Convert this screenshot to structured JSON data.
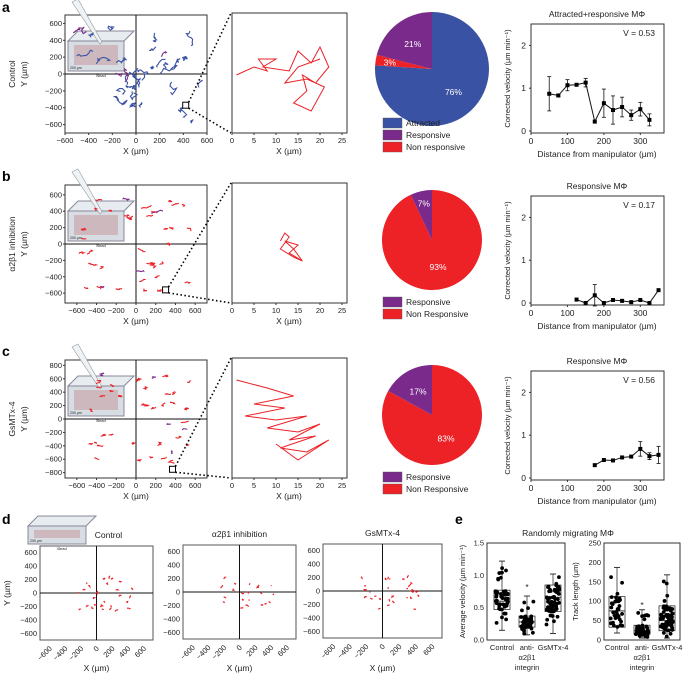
{
  "colors": {
    "attracted": "#3a52a3",
    "responsive": "#7a2a8a",
    "non_responsive": "#ec2227",
    "axis": "#333333"
  },
  "panels": {
    "a": "a",
    "b": "b",
    "c": "c",
    "d": "d",
    "e": "e"
  },
  "rows": [
    {
      "row_label": "Control",
      "ylabel": "Y (µm)",
      "xlabel": "X (µm)",
      "zoom_xlabel": "X (µm)",
      "xticks": [
        -600,
        -400,
        -200,
        0,
        200,
        400,
        600
      ],
      "yticks": [
        600,
        400,
        200,
        0,
        -200,
        -400,
        -600
      ],
      "xrange": [
        -600,
        600
      ],
      "yrange": [
        -700,
        700
      ],
      "track_color": "attracted",
      "track_count": 34,
      "track_spread": 1,
      "zoom_xticks": [
        0,
        5,
        10,
        15,
        20,
        25
      ],
      "zoom_track": [
        [
          1,
          12
        ],
        [
          5,
          14
        ],
        [
          8,
          13
        ],
        [
          6,
          16
        ],
        [
          10,
          16
        ],
        [
          7,
          14
        ],
        [
          13,
          13
        ],
        [
          15,
          18
        ],
        [
          18,
          15
        ],
        [
          20,
          19
        ],
        [
          22,
          14
        ],
        [
          19,
          10
        ],
        [
          16,
          12
        ],
        [
          17,
          8
        ],
        [
          14,
          5
        ],
        [
          18,
          3
        ],
        [
          21,
          9
        ],
        [
          17,
          11
        ],
        [
          12,
          10
        ],
        [
          15,
          14
        ],
        [
          20,
          16
        ]
      ],
      "pie": {
        "slices": [
          {
            "label": "Attracted",
            "value": 76,
            "color": "attracted"
          },
          {
            "label": "Responsive",
            "value": 21,
            "color": "responsive"
          },
          {
            "label": "Non responsive",
            "value": 3,
            "color": "non_responsive"
          }
        ]
      },
      "line": {
        "title": "Attracted+responsive MΦ",
        "v_label": "V = 0.53",
        "ylabel": "Corrected velocity (µm min⁻¹)",
        "xlabel": "Distance from manipulator (µm)",
        "x": [
          50,
          75,
          100,
          125,
          150,
          175,
          200,
          225,
          250,
          275,
          300,
          325
        ],
        "y": [
          0.87,
          0.83,
          1.07,
          1.08,
          1.13,
          0.22,
          0.65,
          0.49,
          0.56,
          0.37,
          0.51,
          0.26
        ],
        "err": [
          0.4,
          0.03,
          0.13,
          0.03,
          0.1,
          0,
          0.33,
          0.33,
          0.23,
          0.12,
          0.16,
          0.14
        ],
        "xticks": [
          0,
          100,
          200,
          300
        ],
        "yticks": [
          0,
          1,
          2
        ],
        "xlim": [
          0,
          365
        ],
        "ylim": [
          0,
          2.5
        ]
      }
    },
    {
      "row_label": "α2β1 inhibition",
      "ylabel": "Y (µm)",
      "xlabel": "X (µm)",
      "zoom_xlabel": "X (µm)",
      "xticks": [
        -600,
        -400,
        -200,
        0,
        200,
        400,
        600
      ],
      "yticks": [
        600,
        400,
        200,
        0,
        -200,
        -400,
        -600
      ],
      "xrange": [
        -720,
        720
      ],
      "yrange": [
        -720,
        720
      ],
      "track_color": "non_responsive",
      "track_count": 40,
      "track_spread": 0.4,
      "zoom_xticks": [
        0,
        5,
        10,
        15,
        20,
        25
      ],
      "zoom_track": [
        [
          11,
          13
        ],
        [
          12,
          15
        ],
        [
          13,
          14
        ],
        [
          11,
          11
        ],
        [
          14,
          9
        ],
        [
          16,
          8
        ],
        [
          13,
          10
        ],
        [
          15,
          12
        ],
        [
          12,
          13
        ],
        [
          14,
          11
        ],
        [
          16,
          8
        ]
      ],
      "pie": {
        "slices": [
          {
            "label": "Responsive",
            "value": 7,
            "color": "responsive"
          },
          {
            "label": "Non Responsive",
            "value": 93,
            "color": "non_responsive"
          }
        ]
      },
      "line": {
        "title": "Responsive MΦ",
        "v_label": "V = 0.17",
        "ylabel": "Corrected velocity (µm min⁻¹)",
        "xlabel": "Distance from manipulator (µm)",
        "x": [
          125,
          150,
          175,
          200,
          225,
          250,
          275,
          300,
          325,
          350
        ],
        "y": [
          0.08,
          0.0,
          0.18,
          0.0,
          0.07,
          0.05,
          0.02,
          0.07,
          0.0,
          0.3
        ],
        "err": [
          0,
          0,
          0.25,
          0,
          0,
          0,
          0,
          0,
          0,
          0
        ],
        "xticks": [
          0,
          100,
          200,
          300
        ],
        "yticks": [
          0,
          1,
          2
        ],
        "xlim": [
          0,
          365
        ],
        "ylim": [
          0,
          2.5
        ]
      }
    },
    {
      "row_label": "GsMTx-4",
      "ylabel": "Y (µm)",
      "xlabel": "X (µm)",
      "zoom_xlabel": "X (µm)",
      "xticks": [
        -600,
        -400,
        -200,
        0,
        200,
        400,
        600
      ],
      "yticks": [
        800,
        600,
        400,
        200,
        0,
        -200,
        -400,
        -600,
        -800
      ],
      "xrange": [
        -720,
        720
      ],
      "yrange": [
        -880,
        880
      ],
      "track_color": "non_responsive",
      "track_count": 40,
      "track_spread": 0.4,
      "zoom_xticks": [
        0,
        5,
        10,
        15,
        20,
        25
      ],
      "zoom_track": [
        [
          1,
          22
        ],
        [
          8,
          20
        ],
        [
          14,
          18
        ],
        [
          5,
          16
        ],
        [
          12,
          15
        ],
        [
          3,
          13
        ],
        [
          10,
          12
        ],
        [
          17,
          13
        ],
        [
          8,
          10
        ],
        [
          15,
          9
        ],
        [
          20,
          11
        ],
        [
          13,
          7
        ],
        [
          19,
          8
        ],
        [
          11,
          5
        ],
        [
          17,
          4
        ],
        [
          22,
          7
        ],
        [
          15,
          2
        ],
        [
          10,
          6
        ]
      ],
      "pie": {
        "slices": [
          {
            "label": "Responsive",
            "value": 17,
            "color": "responsive"
          },
          {
            "label": "Non Responsive",
            "value": 83,
            "color": "non_responsive"
          }
        ]
      },
      "line": {
        "title": "Responsive MΦ",
        "v_label": "V = 0.56",
        "ylabel": "Corrected velocity (µm min⁻¹)",
        "xlabel": "Distance from manipulator (µm)",
        "x": [
          175,
          200,
          225,
          250,
          275,
          300,
          325,
          350
        ],
        "y": [
          0.3,
          0.42,
          0.41,
          0.48,
          0.5,
          0.68,
          0.51,
          0.54
        ],
        "err": [
          0,
          0,
          0,
          0,
          0,
          0.17,
          0.08,
          0.2
        ],
        "xticks": [
          0,
          100,
          200,
          300
        ],
        "yticks": [
          0,
          1,
          2
        ],
        "xlim": [
          0,
          365
        ],
        "ylim": [
          0,
          2.5
        ]
      }
    }
  ],
  "panel_d": {
    "ylabel": "Y (µm)",
    "xlabel": "X (µm)",
    "xticks": [
      -600,
      -400,
      -200,
      0,
      200,
      400,
      600
    ],
    "yticks": [
      600,
      400,
      200,
      0,
      -200,
      -400,
      -600
    ],
    "plots": [
      {
        "title": "Control",
        "count": 30
      },
      {
        "title": "α2β1 inhibition",
        "count": 22
      },
      {
        "title": "GsMTx-4",
        "count": 30
      }
    ]
  },
  "chart_data": [
    {
      "type": "pie",
      "title": "Control",
      "slices": [
        {
          "label": "Attracted",
          "value": 76
        },
        {
          "label": "Responsive",
          "value": 21
        },
        {
          "label": "Non responsive",
          "value": 3
        }
      ]
    },
    {
      "type": "pie",
      "title": "α2β1 inhibition",
      "slices": [
        {
          "label": "Responsive",
          "value": 7
        },
        {
          "label": "Non Responsive",
          "value": 93
        }
      ]
    },
    {
      "type": "pie",
      "title": "GsMTx-4",
      "slices": [
        {
          "label": "Responsive",
          "value": 17
        },
        {
          "label": "Non Responsive",
          "value": 83
        }
      ]
    },
    {
      "type": "line",
      "title": "Attracted+responsive MΦ",
      "note": "V = 0.53"
    },
    {
      "type": "line",
      "title": "Responsive MΦ",
      "note": "V = 0.17"
    },
    {
      "type": "line",
      "title": "Responsive MΦ",
      "note": "V = 0.56"
    },
    {
      "type": "box",
      "title": "Randomly migrating MΦ"
    }
  ],
  "panel_e": {
    "title": "Randomly migrating MΦ",
    "plots": [
      {
        "ylabel": "Average velocity (µm min⁻¹)",
        "ylim": [
          0,
          1.5
        ],
        "yticks": [
          "0.0",
          "0.5",
          "1.0",
          "1.5"
        ],
        "ytick_values": [
          0,
          0.5,
          1,
          1.5
        ],
        "groups": [
          {
            "label": [
              "Control"
            ],
            "min": 0.15,
            "q1": 0.47,
            "med": 0.6,
            "q3": 0.77,
            "max": 1.22,
            "n": 45
          },
          {
            "label": [
              "anti-",
              "α2β1",
              "integrin"
            ],
            "min": 0.08,
            "q1": 0.2,
            "med": 0.28,
            "q3": 0.37,
            "max": 0.68,
            "n": 45,
            "star": 0.82
          },
          {
            "label": [
              "GsMTx-4"
            ],
            "min": 0.1,
            "q1": 0.44,
            "med": 0.66,
            "q3": 0.85,
            "max": 1.02,
            "n": 60
          }
        ]
      },
      {
        "ylabel": "Track length (µm)",
        "ylim": [
          0,
          250
        ],
        "yticks": [
          "0",
          "50",
          "100",
          "150",
          "200",
          "250"
        ],
        "ytick_values": [
          0,
          50,
          100,
          150,
          200,
          250
        ],
        "groups": [
          {
            "label": [
              "Control"
            ],
            "min": 18,
            "q1": 33,
            "med": 75,
            "q3": 112,
            "max": 187,
            "n": 35
          },
          {
            "label": [
              "anti-",
              "α2β1",
              "integrin"
            ],
            "min": 5,
            "q1": 15,
            "med": 25,
            "q3": 38,
            "max": 78,
            "n": 45,
            "star": 90
          },
          {
            "label": [
              "GsMTx-4"
            ],
            "min": 5,
            "q1": 24,
            "med": 50,
            "q3": 88,
            "max": 168,
            "n": 60
          }
        ]
      }
    ]
  },
  "inset": {
    "bead_label": "Bead",
    "scale_label": "200 µm"
  }
}
